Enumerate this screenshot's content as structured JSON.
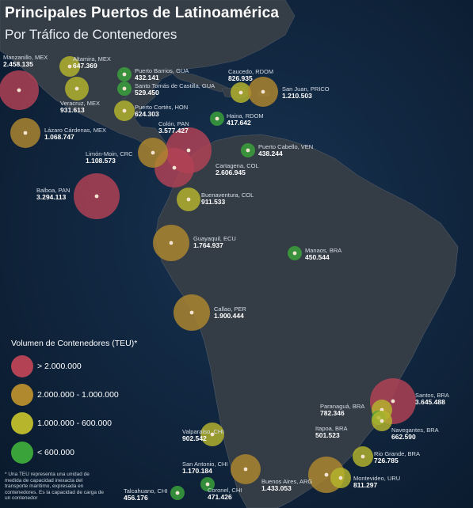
{
  "header": {
    "title": "Principales Puertos de Latinoamérica",
    "subtitle": "Por Tráfico de Contenedores"
  },
  "colors": {
    "over_2m": "#b34255",
    "range_1m_2m": "#b0882e",
    "range_600k_1m": "#b6b52c",
    "under_600k": "#3aa43a",
    "ocean": "#0e2138",
    "land": "#343c46"
  },
  "legend": {
    "title": "Volumen de Contenedores (TEU)*",
    "items": [
      {
        "label": "> 2.000.000",
        "color": "#b34255"
      },
      {
        "label": "2.000.000 - 1.000.000",
        "color": "#b0882e"
      },
      {
        "label": "1.000.000 - 600.000",
        "color": "#b6b52c"
      },
      {
        "label": "< 600.000",
        "color": "#3aa43a"
      }
    ]
  },
  "footnote": "* Una TEU representa una unidad de medida de capacidad inexacta del transporte marítimo, expresada en contenedores. Es la capacidad de carga de un contenedor",
  "ports": [
    {
      "name": "Manzanillo, MEX",
      "value": "2.458.135"
    },
    {
      "name": "Altamira, MEX",
      "value": "647.369"
    },
    {
      "name": "Veracruz, MEX",
      "value": "931.613"
    },
    {
      "name": "Lázaro Cárdenas, MEX",
      "value": "1.068.747"
    },
    {
      "name": "Puerto Barrios, GUA",
      "value": "432.141"
    },
    {
      "name": "Santo Tomás de Castilla, GUA",
      "value": "529.450"
    },
    {
      "name": "Puerto Cortés, HON",
      "value": "624.303"
    },
    {
      "name": "Colón, PAN",
      "value": "3.577.427"
    },
    {
      "name": "Caucedo, RDOM",
      "value": "826.935"
    },
    {
      "name": "San Juan, PRICO",
      "value": "1.210.503"
    },
    {
      "name": "Haina, RDOM",
      "value": "417.642"
    },
    {
      "name": "Puerto Cabello, VEN",
      "value": "438.244"
    },
    {
      "name": "Cartagena, COL",
      "value": "2.606.945"
    },
    {
      "name": "Limón-Moin, CRC",
      "value": "1.108.573"
    },
    {
      "name": "Balboa, PAN",
      "value": "3.294.113"
    },
    {
      "name": "Buenaventura, COL",
      "value": "911.533"
    },
    {
      "name": "Guayaquil, ECU",
      "value": "1.764.937"
    },
    {
      "name": "Manaos, BRA",
      "value": "450.544"
    },
    {
      "name": "Callao, PER",
      "value": "1.900.444"
    },
    {
      "name": "Santos, BRA",
      "value": "3.645.488"
    },
    {
      "name": "Paranaguá, BRA",
      "value": "782.346"
    },
    {
      "name": "Itapoa, BRA",
      "value": "501.523"
    },
    {
      "name": "Navegantes, BRA",
      "value": "662.590"
    },
    {
      "name": "Valparaíso, CHI",
      "value": "902.542"
    },
    {
      "name": "Rio Grande, BRA",
      "value": "726.785"
    },
    {
      "name": "San Antonio, CHI",
      "value": "1.170.184"
    },
    {
      "name": "Buenos Aires, ARG",
      "value": "1.433.053"
    },
    {
      "name": "Montevideo, URU",
      "value": "811.297"
    },
    {
      "name": "Talcahuano, CHI",
      "value": "456.176"
    },
    {
      "name": "Coronel, CHI",
      "value": "471.426"
    }
  ]
}
